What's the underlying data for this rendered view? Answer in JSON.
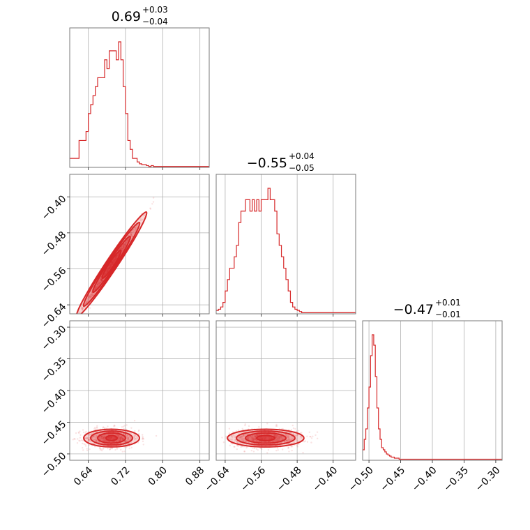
{
  "chart_data": {
    "type": "corner",
    "color": "#d62728",
    "parameters": [
      {
        "index": 0,
        "title": {
          "median": "0.69",
          "plus": "+0.03",
          "minus": "−0.04"
        },
        "range": [
          0.6,
          0.9
        ],
        "ticks": [
          0.64,
          0.72,
          0.8,
          0.88
        ],
        "tick_labels": [
          "0.64",
          "0.72",
          "0.80",
          "0.88"
        ],
        "histogram": {
          "bin_start": 0.6,
          "bin_width": 0.005,
          "counts": [
            1,
            1,
            1,
            1,
            3,
            3,
            3,
            4,
            6,
            7,
            8,
            9,
            10,
            10,
            10,
            12,
            11,
            13,
            13,
            13,
            12,
            14,
            12,
            9,
            6,
            3,
            2,
            1,
            1,
            0.6,
            0.4,
            0.3,
            0.3,
            0.2,
            0.1,
            0.2,
            0.1,
            0.1,
            0.1,
            0.1,
            0.1,
            0.1,
            0.1,
            0.1,
            0.1,
            0.1,
            0.1,
            0.1,
            0.1,
            0.1,
            0.1,
            0.1,
            0.1,
            0.1,
            0.1,
            0.1,
            0.1,
            0.1,
            0.1,
            0.1
          ]
        }
      },
      {
        "index": 1,
        "title": {
          "median": "−0.55",
          "plus": "+0.04",
          "minus": "−0.05"
        },
        "range": [
          -0.66,
          -0.35
        ],
        "ticks": [
          -0.64,
          -0.56,
          -0.48,
          -0.4
        ],
        "tick_labels": [
          "−0.64",
          "−0.56",
          "−0.48",
          "−0.40"
        ],
        "histogram": {
          "bin_start": -0.66,
          "bin_width": 0.005,
          "counts": [
            0.3,
            0.4,
            0.6,
            1,
            2,
            3,
            4,
            4,
            5,
            6,
            8,
            9,
            9,
            10,
            10,
            9,
            10,
            9,
            10,
            9,
            10,
            10,
            10,
            11,
            10,
            10,
            9,
            7,
            6,
            5,
            4,
            3,
            2,
            1,
            0.6,
            0.4,
            0.3,
            0.2,
            0.1,
            0.1,
            0.1,
            0.1,
            0.1,
            0.1,
            0.1,
            0.1,
            0.1,
            0.1,
            0.1,
            0.1,
            0.1,
            0.1,
            0.1,
            0.1,
            0.1,
            0.1,
            0.1,
            0.1,
            0.1,
            0.1,
            0.1,
            0.1
          ]
        }
      },
      {
        "index": 2,
        "title": {
          "median": "−0.47",
          "plus": "+0.01",
          "minus": "−0.01"
        },
        "range": [
          -0.51,
          -0.29
        ],
        "ticks": [
          -0.5,
          -0.45,
          -0.4,
          -0.35,
          -0.3
        ],
        "tick_labels": [
          "−0.50",
          "−0.45",
          "−0.40",
          "−0.35",
          "−0.30"
        ],
        "left_ticks": [
          -0.3,
          -0.35,
          -0.4,
          -0.45,
          -0.5
        ],
        "left_tick_labels": [
          "−0.30",
          "−0.35",
          "−0.40",
          "−0.45",
          "−0.50"
        ],
        "histogram": {
          "bin_start": -0.51,
          "bin_width": 0.0025,
          "counts": [
            1,
            2,
            3,
            5,
            7,
            10,
            12,
            11,
            8,
            5,
            3,
            2,
            1.2,
            1,
            0.8,
            0.6,
            0.5,
            0.4,
            0.3,
            0.3,
            0.2,
            0.2,
            0.2,
            0.1,
            0.1,
            0.1,
            0.1,
            0.1,
            0.1,
            0.1,
            0.1,
            0.1,
            0.1,
            0.1,
            0.1,
            0.1,
            0.1,
            0.1,
            0.1,
            0.1,
            0.1,
            0.1,
            0.1,
            0.1,
            0.1,
            0.1,
            0.1,
            0.1,
            0.1,
            0.1,
            0.1,
            0.1,
            0.1,
            0.1,
            0.1,
            0.1,
            0.1,
            0.1,
            0.1,
            0.1,
            0.1,
            0.1,
            0.1,
            0.1,
            0.1,
            0.1,
            0.1,
            0.1,
            0.1,
            0.1,
            0.1,
            0.1,
            0.1,
            0.1,
            0.1,
            0.1,
            0.1,
            0.1,
            0.1,
            0.1,
            0.1,
            0.1,
            0.1,
            0.1,
            0.1,
            0.1,
            0.1,
            0.1
          ]
        }
      }
    ],
    "param1_left_ticks": [
      -0.4,
      -0.48,
      -0.56,
      -0.64
    ],
    "param1_left_tick_labels": [
      "−0.40",
      "−0.48",
      "−0.56",
      "−0.64"
    ],
    "pairs": [
      {
        "x": 0,
        "y": 1,
        "kind": "correlated",
        "center": [
          0.69,
          -0.55
        ],
        "slope": 1.55,
        "spread_x": 0.03,
        "spread_perp": 0.006,
        "contour_half_length": [
          0.075,
          0.06,
          0.04,
          0.02
        ],
        "contour_half_width": [
          0.008,
          0.006,
          0.004,
          0.002
        ]
      },
      {
        "x": 0,
        "y": 2,
        "kind": "horizontal",
        "center": [
          0.69,
          -0.475
        ],
        "spread_x": 0.03,
        "spread_y": 0.008,
        "contour_rx": [
          0.06,
          0.045,
          0.03,
          0.012
        ],
        "contour_ry": [
          0.014,
          0.011,
          0.008,
          0.004
        ]
      },
      {
        "x": 1,
        "y": 2,
        "kind": "horizontal",
        "center": [
          -0.55,
          -0.475
        ],
        "spread_x": 0.04,
        "spread_y": 0.008,
        "contour_rx": [
          0.085,
          0.065,
          0.045,
          0.02
        ],
        "contour_ry": [
          0.014,
          0.011,
          0.008,
          0.004
        ]
      }
    ],
    "grid": true
  }
}
